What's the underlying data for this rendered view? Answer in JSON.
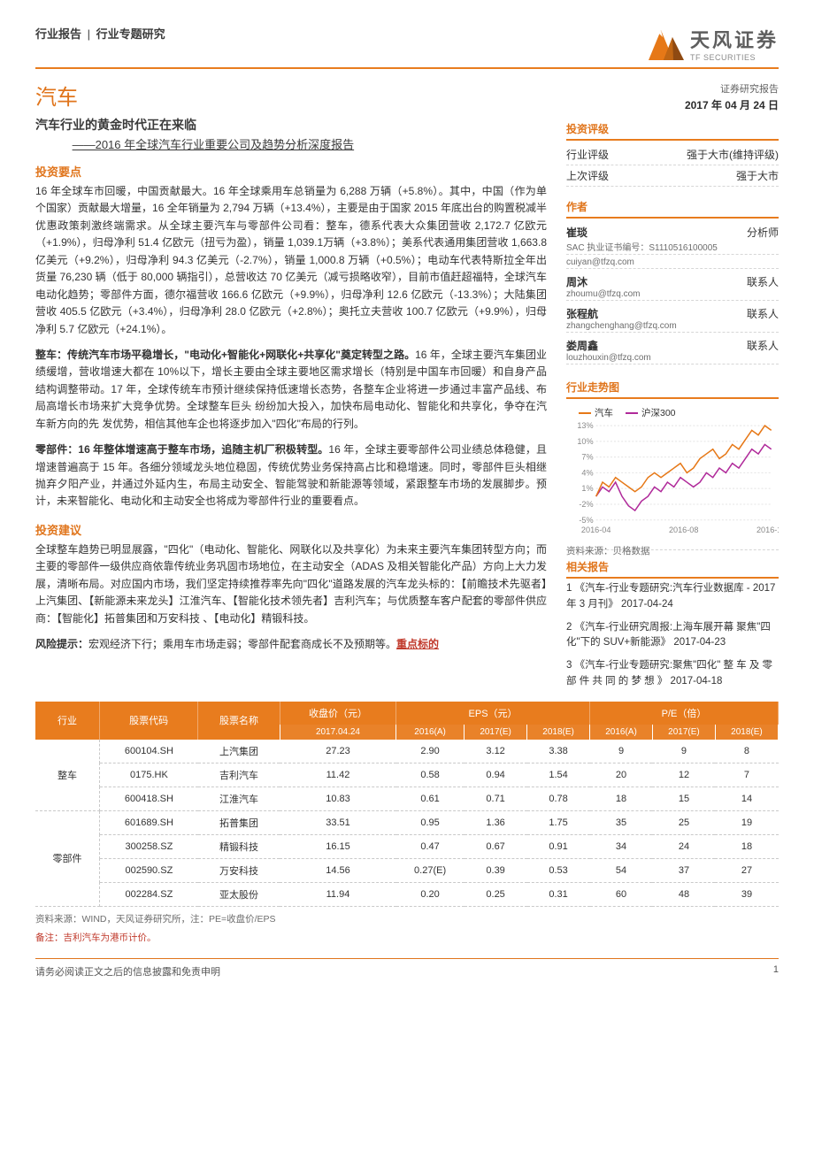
{
  "meta": {
    "crumb1": "行业报告",
    "crumbSep": "|",
    "crumb2": "行业专题研究",
    "brand_cn": "天风证券",
    "brand_en": "TF SECURITIES",
    "logo_colors": [
      "#e67817",
      "#c06614",
      "#8f4a12",
      "#ffffff"
    ]
  },
  "main": {
    "title": "汽车",
    "subtitle": "汽车行业的黄金时代正在来临",
    "ssub": "——2016 年全球汽车行业重要公司及趋势分析深度报告",
    "sec1": "投资要点",
    "p1": "16 年全球车市回暖，中国贡献最大。16 年全球乘用车总销量为 6,288 万辆（+5.8%）。其中，中国（作为单个国家）贡献最大增量，16 全年销量为 2,794 万辆（+13.4%），主要是由于国家 2015 年底出台的购置税减半优惠政策刺激终端需求。从全球主要汽车与零部件公司看：整车，德系代表大众集团营收 2,172.7 亿欧元（+1.9%），归母净利 51.4 亿欧元（扭亏为盈），销量 1,039.1万辆（+3.8%）；美系代表通用集团营收 1,663.8 亿美元（+9.2%），归母净利 94.3 亿美元（-2.7%），销量 1,000.8 万辆（+0.5%）；电动车代表特斯拉全年出货量 76,230 辆（低于 80,000 辆指引），总营收达 70 亿美元（减亏损略收窄），目前市值赶超福特，全球汽车电动化趋势；零部件方面，德尔福营收 166.6 亿欧元（+9.9%），归母净利 12.6 亿欧元（-13.3%）；大陆集团营收 405.5 亿欧元（+3.4%），归母净利 28.0 亿欧元（+2.8%）；奥托立夫营收 100.7 亿欧元（+9.9%），归母净利 5.7 亿欧元（+24.1%）。",
    "p2h": "整车：传统汽车市场平稳增长，\"电动化+智能化+网联化+共享化\"奠定转型之路。",
    "p2": "16 年，全球主要汽车集团业绩缓增，营收增速大都在 10%以下，增长主要由全球主要地区需求增长（特别是中国车市回暖）和自身产品结构调整带动。17 年，全球传统车市预计继续保持低速增长态势，各整车企业将进一步通过丰富产品线、布局高增长市场来扩大竞争优势。全球整车巨头 纷纷加大投入，加快布局电动化、智能化和共享化，争夺在汽车新方向的先 发优势，相信其他车企也将逐步加入\"四化\"布局的行列。",
    "p3h": "零部件：16 年整体增速高于整车市场，追随主机厂积极转型。",
    "p3": "16 年，全球主要零部件公司业绩总体稳健，且增速普遍高于 15 年。各细分领域龙头地位稳固，传统优势业务保持高占比和稳增速。同时，零部件巨头相继抛弃夕阳产业，并通过外延内生，布局主动安全、智能驾驶和新能源等领域，紧跟整车市场的发展脚步。预计，未来智能化、电动化和主动安全也将成为零部件行业的重要看点。",
    "sec2": "投资建议",
    "p4": "全球整车趋势已明显展露，\"四化\"（电动化、智能化、网联化以及共享化）为未来主要汽车集团转型方向；而主要的零部件一级供应商依靠传统业务巩固市场地位，在主动安全（ADAS 及相关智能化产品）方向上大力发展，清晰布局。对应国内市场，我们坚定持续推荐率先向\"四化\"道路发展的汽车龙头标的：【前瞻技术先驱者】上汽集团、【新能源未来龙头】江淮汽车、【智能化技术领先者】吉利汽车；与优质整车客户配套的零部件供应商：【智能化】拓普集团和万安科技 、【电动化】精锻科技。",
    "risk_label": "风险提示：",
    "risk_text": "宏观经济下行；乘用车市场走弱；零部件配套商成长不及预期等。",
    "risk_trail": "重点标的"
  },
  "table": {
    "headers": {
      "industry": "行业",
      "code": "股票代码",
      "name": "股票名称",
      "price": "收盘价（元）",
      "eps": "EPS（元）",
      "pe": "P/E（倍）"
    },
    "subheaders": {
      "date": "2017.04.24",
      "y1": "2016(A)",
      "y2": "2017(E)",
      "y3": "2018(E)",
      "p1": "2016(A)",
      "p2": "2017(E)",
      "p3": "2018(E)"
    },
    "group1": "整车",
    "group2": "零部件",
    "rows1": [
      {
        "code": "600104.SH",
        "name": "上汽集团",
        "price": "27.23",
        "e1": "2.90",
        "e2": "3.12",
        "e3": "3.38",
        "p1": "9",
        "p2": "9",
        "p3": "8"
      },
      {
        "code": "0175.HK",
        "name": "吉利汽车",
        "price": "11.42",
        "e1": "0.58",
        "e2": "0.94",
        "e3": "1.54",
        "p1": "20",
        "p2": "12",
        "p3": "7"
      },
      {
        "code": "600418.SH",
        "name": "江淮汽车",
        "price": "10.83",
        "e1": "0.61",
        "e2": "0.71",
        "e3": "0.78",
        "p1": "18",
        "p2": "15",
        "p3": "14"
      }
    ],
    "rows2": [
      {
        "code": "601689.SH",
        "name": "拓普集团",
        "price": "33.51",
        "e1": "0.95",
        "e2": "1.36",
        "e3": "1.75",
        "p1": "35",
        "p2": "25",
        "p3": "19"
      },
      {
        "code": "300258.SZ",
        "name": "精锻科技",
        "price": "16.15",
        "e1": "0.47",
        "e2": "0.67",
        "e3": "0.91",
        "p1": "34",
        "p2": "24",
        "p3": "18"
      },
      {
        "code": "002590.SZ",
        "name": "万安科技",
        "price": "14.56",
        "e1": "0.27(E)",
        "e2": "0.39",
        "e3": "0.53",
        "p1": "54",
        "p2": "37",
        "p3": "27"
      },
      {
        "code": "002284.SZ",
        "name": "亚太股份",
        "price": "11.94",
        "e1": "0.20",
        "e2": "0.25",
        "e3": "0.31",
        "p1": "60",
        "p2": "48",
        "p3": "39"
      }
    ],
    "srcnote": "资料来源：WIND，天风证券研究所，注：PE=收盘价/EPS",
    "footnote": "备注：吉利汽车为港币计价。"
  },
  "footer": {
    "disc": "请务必阅读正文之后的信息披露和免责申明",
    "page": "1"
  },
  "side": {
    "report_type": "证券研究报告",
    "date": "2017 年 04 月 24 日",
    "rating_head": "投资评级",
    "rating_rows": [
      {
        "k": "行业评级",
        "v": "强于大市(维持评级)"
      },
      {
        "k": "上次评级",
        "v": "强于大市"
      }
    ],
    "author_head": "作者",
    "authors": [
      {
        "name": "崔琰",
        "role": "分析师",
        "sub": "SAC 执业证书编号：S1110516100005",
        "email": "cuiyan@tfzq.com"
      },
      {
        "name": "周沐",
        "role": "联系人",
        "sub": "",
        "email": "zhoumu@tfzq.com"
      },
      {
        "name": "张程航",
        "role": "联系人",
        "sub": "",
        "email": "zhangchenghang@tfzq.com"
      },
      {
        "name": "娄周鑫",
        "role": "联系人",
        "sub": "",
        "email": "louzhouxin@tfzq.com"
      }
    ],
    "chart_head": "行业走势图",
    "chart": {
      "legend": [
        {
          "label": "汽车",
          "color": "#e67817"
        },
        {
          "label": "沪深300",
          "color": "#b02a9a"
        }
      ],
      "x_ticks": [
        "2016-04",
        "2016-08",
        "2016-12"
      ],
      "y_ticks": [
        "-5%",
        "-2%",
        "1%",
        "4%",
        "7%",
        "10%",
        "13%"
      ],
      "ylim": [
        -6,
        14
      ],
      "series": {
        "auto": {
          "color": "#e67817",
          "width": 1.5,
          "points": [
            -1,
            2,
            1,
            3,
            2,
            1,
            0,
            1,
            3,
            4,
            3,
            4,
            5,
            6,
            4,
            5,
            7,
            8,
            9,
            7,
            8,
            10,
            9,
            11,
            13,
            12,
            14,
            13
          ]
        },
        "csi": {
          "color": "#b02a9a",
          "width": 1.5,
          "points": [
            -1,
            1,
            0,
            2,
            -1,
            -3,
            -4,
            -2,
            -1,
            1,
            0,
            2,
            1,
            3,
            2,
            1,
            2,
            4,
            3,
            5,
            4,
            6,
            5,
            7,
            9,
            8,
            10,
            9
          ]
        }
      },
      "bg": "#ffffff",
      "gridcolor": "#e4e4e4"
    },
    "chart_src": "资料来源：贝格数据",
    "related_head": "相关报告",
    "related": [
      "1 《汽车-行业专题研究:汽车行业数据库 - 2017 年 3 月刊》 2017-04-24",
      "2 《汽车-行业研究周报:上海车展开幕 聚焦\"四化\"下的 SUV+新能源》 2017-04-23",
      "3 《汽车-行业专题研究:聚焦\"四化\" 整 车 及 零 部 件 共 同 的 梦 想 》 2017-04-18"
    ]
  }
}
